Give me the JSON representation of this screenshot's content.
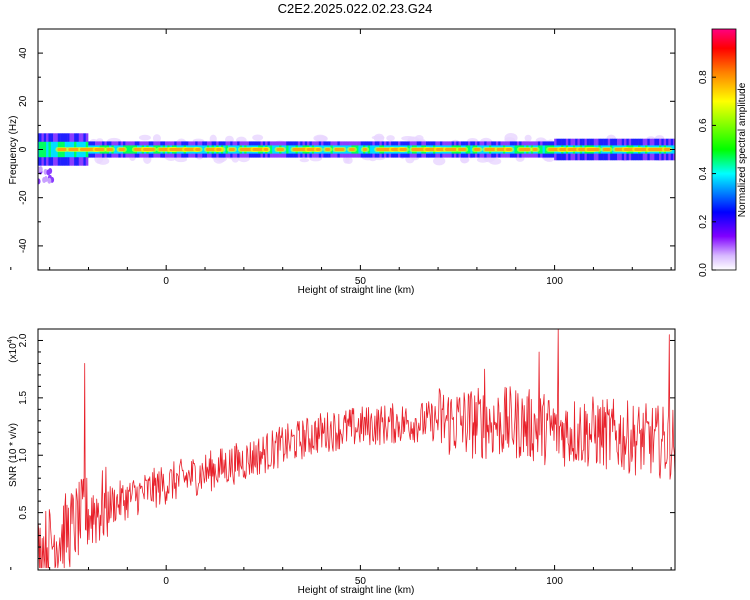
{
  "title": "C2E2.2025.022.02.23.G24",
  "chart_data": [
    {
      "type": "heatmap",
      "xlabel": "Height of straight line (km)",
      "ylabel": "Frequency (Hz)",
      "xlim": [
        -33,
        131
      ],
      "ylim": [
        -50,
        50
      ],
      "x_ticks": [
        "0",
        "50",
        "100"
      ],
      "x_tick_values": [
        0,
        50,
        100
      ],
      "y_ticks": [
        "40",
        "20",
        "0",
        "-20",
        "-40"
      ],
      "y_tick_values": [
        40,
        20,
        0,
        -20,
        -40
      ],
      "colorbar": {
        "label": "Normalized spectral amplitude",
        "range": [
          0,
          1
        ],
        "ticks": [
          "0.0",
          "0.2",
          "0.4",
          "0.6",
          "0.8"
        ],
        "tick_values": [
          0.0,
          0.2,
          0.4,
          0.6,
          0.8
        ],
        "colormap": [
          "#f0f0ff",
          "#c8a0ff",
          "#6600ff",
          "#0000ff",
          "#00ffff",
          "#00ff00",
          "#ffff00",
          "#ff8000",
          "#ff0000",
          "#ff0080"
        ]
      },
      "band_center_hz": 0,
      "band_halfwidth_hz": 4
    },
    {
      "type": "line",
      "xlabel": "Height of straight line (km)",
      "ylabel": "SNR (10 * v/v)",
      "y_multiplier": "(x10",
      "y_multiplier_exp": "4",
      "y_multiplier_close": ")",
      "xlim": [
        -33,
        131
      ],
      "ylim": [
        0,
        2.1
      ],
      "x_ticks": [
        "0",
        "50",
        "100"
      ],
      "x_tick_values": [
        0,
        50,
        100
      ],
      "y_ticks": [
        "0.5",
        "1.0",
        "1.5",
        "2.0"
      ],
      "y_tick_values": [
        0.5,
        1.0,
        1.5,
        2.0
      ],
      "line_color": "#e8202a",
      "trend": {
        "x": [
          -33,
          -25,
          -20,
          -10,
          0,
          10,
          20,
          30,
          40,
          50,
          60,
          70,
          80,
          90,
          100,
          110,
          120,
          131
        ],
        "y": [
          0.15,
          0.35,
          0.5,
          0.62,
          0.75,
          0.85,
          0.95,
          1.08,
          1.2,
          1.25,
          1.28,
          1.3,
          1.28,
          1.28,
          1.22,
          1.2,
          1.15,
          1.1
        ]
      },
      "spikes": [
        {
          "x": -21,
          "y": 1.8
        },
        {
          "x": 101,
          "y": 2.1
        },
        {
          "x": 129.5,
          "y": 2.05
        },
        {
          "x": 96,
          "y": 1.9
        },
        {
          "x": 82,
          "y": 1.75
        }
      ]
    }
  ]
}
